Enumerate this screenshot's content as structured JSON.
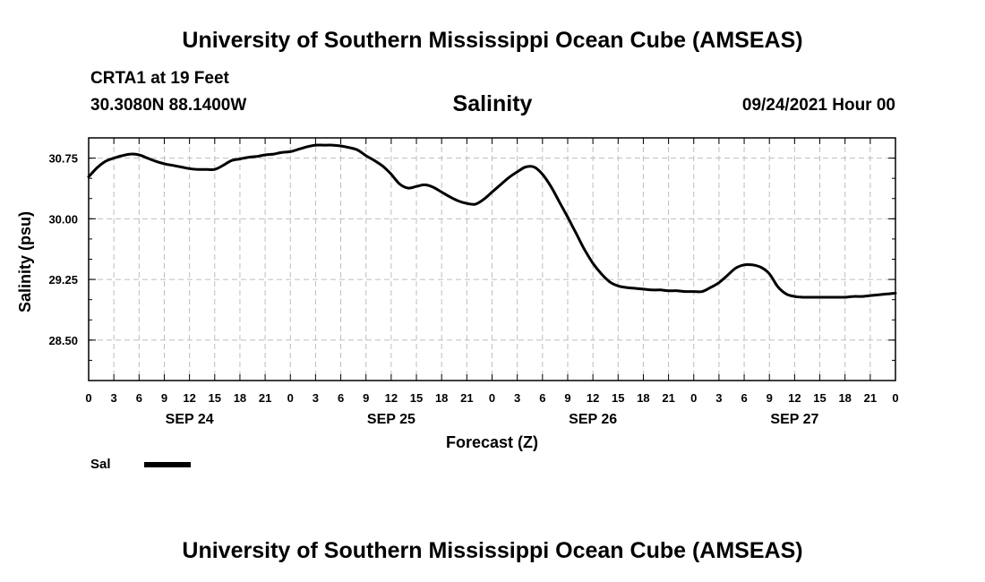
{
  "header": {
    "title": "University of Southern Mississippi Ocean Cube (AMSEAS)",
    "station": "CRTA1 at 19 Feet",
    "coords": "30.3080N  88.1400W",
    "variable": "Salinity",
    "date": "09/24/2021 Hour 00"
  },
  "footer": {
    "title": "University of Southern Mississippi Ocean Cube (AMSEAS)"
  },
  "legend": {
    "label": "Sal"
  },
  "chart_data": {
    "type": "line",
    "title": "Salinity",
    "xlabel": "Forecast (Z)",
    "ylabel": "Salinity (psu)",
    "xlim": [
      0,
      96
    ],
    "ylim": [
      28.0,
      31.0
    ],
    "yticks": [
      28.5,
      29.25,
      30.0,
      30.75
    ],
    "ytick_labels": [
      "28.50",
      "29.25",
      "30.00",
      "30.75"
    ],
    "xtick_hours": [
      0,
      3,
      6,
      9,
      12,
      15,
      18,
      21,
      24,
      27,
      30,
      33,
      36,
      39,
      42,
      45,
      48,
      51,
      54,
      57,
      60,
      63,
      66,
      69,
      72,
      75,
      78,
      81,
      84,
      87,
      90,
      93,
      96
    ],
    "xtick_labels": [
      "0",
      "3",
      "6",
      "9",
      "12",
      "15",
      "18",
      "21",
      "0",
      "3",
      "6",
      "9",
      "12",
      "15",
      "18",
      "21",
      "0",
      "3",
      "6",
      "9",
      "12",
      "15",
      "18",
      "21",
      "0",
      "3",
      "6",
      "9",
      "12",
      "15",
      "18",
      "21",
      "0"
    ],
    "date_labels": [
      {
        "hour": 12,
        "label": "SEP 24"
      },
      {
        "hour": 36,
        "label": "SEP 25"
      },
      {
        "hour": 60,
        "label": "SEP 26"
      },
      {
        "hour": 84,
        "label": "SEP 27"
      }
    ],
    "grid": true,
    "series": [
      {
        "name": "Sal",
        "color": "#000000",
        "x": [
          0,
          1,
          2,
          3,
          4,
          5,
          6,
          7,
          8,
          9,
          10,
          11,
          12,
          13,
          14,
          15,
          16,
          17,
          18,
          19,
          20,
          21,
          22,
          23,
          24,
          25,
          26,
          27,
          28,
          29,
          30,
          31,
          32,
          33,
          34,
          35,
          36,
          37,
          38,
          39,
          40,
          41,
          42,
          43,
          44,
          45,
          46,
          47,
          48,
          49,
          50,
          51,
          52,
          53,
          54,
          55,
          56,
          57,
          58,
          59,
          60,
          61,
          62,
          63,
          64,
          65,
          66,
          67,
          68,
          69,
          70,
          71,
          72,
          73,
          74,
          75,
          76,
          77,
          78,
          79,
          80,
          81,
          82,
          83,
          84,
          85,
          86,
          87,
          88,
          89,
          90,
          91,
          92,
          93,
          94,
          95,
          96
        ],
        "values": [
          30.52,
          30.63,
          30.71,
          30.75,
          30.78,
          30.8,
          30.79,
          30.75,
          30.71,
          30.68,
          30.66,
          30.64,
          30.62,
          30.61,
          30.61,
          30.61,
          30.66,
          30.72,
          30.74,
          30.76,
          30.77,
          30.79,
          30.8,
          30.82,
          30.83,
          30.86,
          30.89,
          30.91,
          30.91,
          30.91,
          30.9,
          30.88,
          30.85,
          30.78,
          30.72,
          30.65,
          30.55,
          30.43,
          30.38,
          30.4,
          30.42,
          30.39,
          30.33,
          30.27,
          30.22,
          30.19,
          30.18,
          30.24,
          30.33,
          30.42,
          30.51,
          30.58,
          30.64,
          30.64,
          30.55,
          30.4,
          30.21,
          30.02,
          29.82,
          29.62,
          29.45,
          29.32,
          29.22,
          29.17,
          29.15,
          29.14,
          29.13,
          29.12,
          29.12,
          29.11,
          29.11,
          29.1,
          29.1,
          29.1,
          29.15,
          29.21,
          29.3,
          29.39,
          29.43,
          29.43,
          29.4,
          29.32,
          29.16,
          29.07,
          29.04,
          29.03,
          29.03,
          29.03,
          29.03,
          29.03,
          29.03,
          29.04,
          29.04,
          29.05,
          29.06,
          29.07,
          29.08
        ]
      }
    ]
  }
}
